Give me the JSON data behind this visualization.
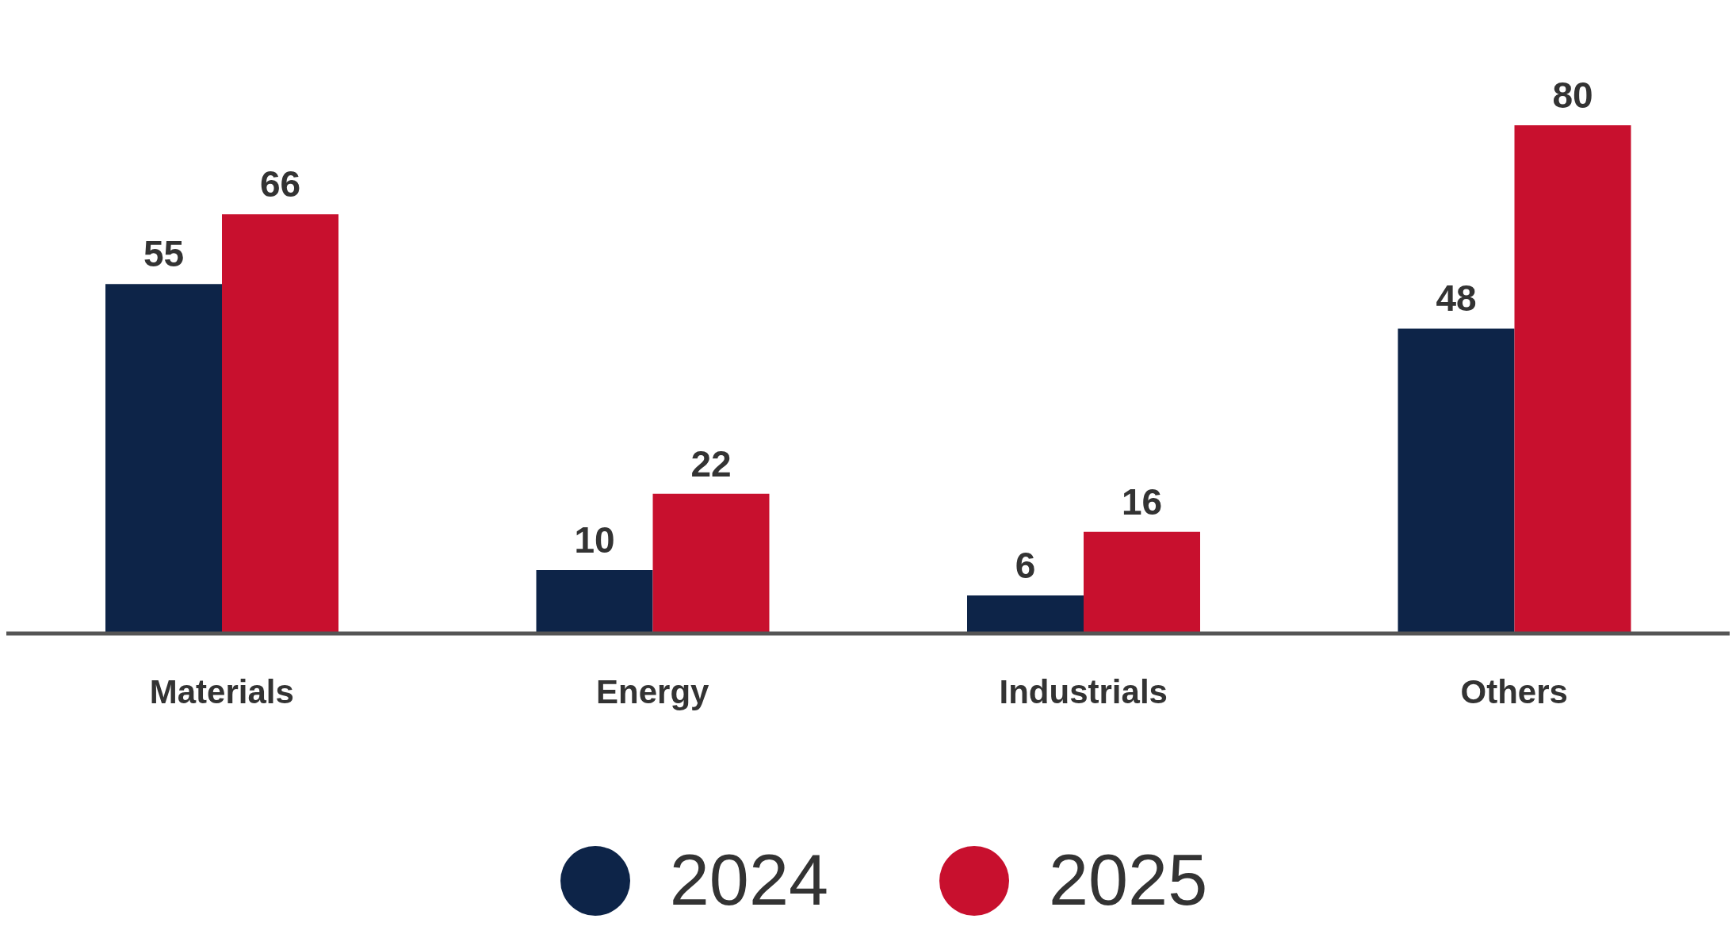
{
  "chart_data": {
    "type": "bar",
    "categories": [
      "Materials",
      "Energy",
      "Industrials",
      "Others"
    ],
    "series": [
      {
        "name": "2024",
        "color": "#0d2448",
        "values": [
          55,
          10,
          6,
          48
        ]
      },
      {
        "name": "2025",
        "color": "#c8102e",
        "values": [
          66,
          22,
          16,
          80
        ]
      }
    ],
    "data_labels": true,
    "legend": "bottom",
    "grid": false
  }
}
